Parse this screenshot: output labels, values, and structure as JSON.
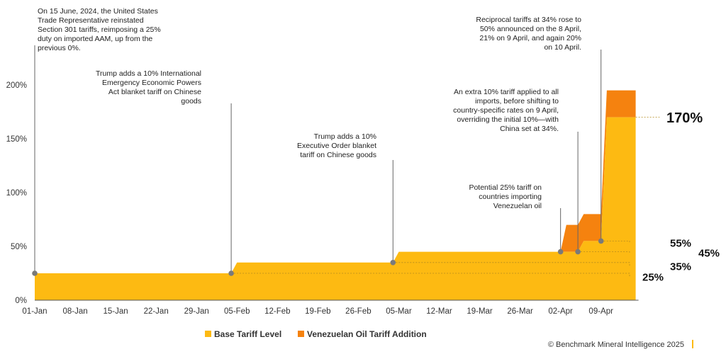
{
  "chart_data": {
    "type": "area",
    "x_ticks": [
      "01-Jan",
      "08-Jan",
      "15-Jan",
      "22-Jan",
      "29-Jan",
      "05-Feb",
      "12-Feb",
      "19-Feb",
      "26-Feb",
      "05-Mar",
      "12-Mar",
      "19-Mar",
      "26-Mar",
      "02-Apr",
      "09-Apr"
    ],
    "y_ticks": [
      "0%",
      "50%",
      "100%",
      "150%",
      "200%"
    ],
    "ylim": [
      0,
      230
    ],
    "xlim": [
      "2025-01-01",
      "2025-04-15"
    ],
    "grid": false,
    "legend_position": "bottom-center",
    "series": [
      {
        "name": "Base Tariff Level",
        "color": "#FDBA12",
        "points": [
          {
            "x": "2025-01-01",
            "y": 25
          },
          {
            "x": "2025-02-04",
            "y": 25
          },
          {
            "x": "2025-02-05",
            "y": 35
          },
          {
            "x": "2025-03-04",
            "y": 35
          },
          {
            "x": "2025-03-05",
            "y": 45
          },
          {
            "x": "2025-04-05",
            "y": 45
          },
          {
            "x": "2025-04-06",
            "y": 55
          },
          {
            "x": "2025-04-09",
            "y": 55
          },
          {
            "x": "2025-04-10",
            "y": 170
          },
          {
            "x": "2025-04-15",
            "y": 170
          }
        ]
      },
      {
        "name": "Venezuelan Oil Tariff Addition",
        "color": "#F5820F",
        "points": [
          {
            "x": "2025-04-02",
            "y": 45
          },
          {
            "x": "2025-04-03",
            "y": 70
          },
          {
            "x": "2025-04-05",
            "y": 70
          },
          {
            "x": "2025-04-06",
            "y": 80
          },
          {
            "x": "2025-04-09",
            "y": 80
          },
          {
            "x": "2025-04-10",
            "y": 195
          },
          {
            "x": "2025-04-15",
            "y": 195
          }
        ]
      }
    ],
    "level_labels": [
      {
        "text": "170%",
        "y": 170
      },
      {
        "text": "55%",
        "y": 55
      },
      {
        "text": "45%",
        "y": 45
      },
      {
        "text": "35%",
        "y": 35
      },
      {
        "text": "25%",
        "y": 25
      }
    ],
    "annotations": [
      {
        "x": "2025-01-01",
        "y": 25,
        "anchor": "start",
        "lines": [
          "On 15 June, 2024, the United States",
          "Trade Representative reinstated",
          "Section 301 tariffs, reimposing a 25%",
          "duty on imported AAM, up from the",
          "previous 0%."
        ]
      },
      {
        "x": "2025-02-04",
        "y": 25,
        "anchor": "end",
        "lines": [
          "Trump adds a 10% International",
          "Emergency Economic Powers",
          "Act blanket tariff on Chinese",
          "goods"
        ]
      },
      {
        "x": "2025-03-04",
        "y": 35,
        "anchor": "end",
        "lines": [
          "Trump adds a 10%",
          "Executive Order blanket",
          "tariff on Chinese goods"
        ]
      },
      {
        "x": "2025-04-02",
        "y": 45,
        "anchor": "end",
        "lines": [
          "Potential 25% tariff on",
          "countries importing",
          "Venezuelan oil"
        ]
      },
      {
        "x": "2025-04-05",
        "y": 45,
        "anchor": "end",
        "lines": [
          "An extra 10% tariff applied to all",
          "imports, before shifting to",
          "country-specific rates on 9 April,",
          "overriding the initial 10%—with",
          "China set at 34%."
        ]
      },
      {
        "x": "2025-04-09",
        "y": 55,
        "anchor": "end",
        "lines": [
          "Reciprocal tariffs at 34% rose to",
          "50% announced on the 8 April,",
          "21% on 9 April, and again 20%",
          "on 10 April."
        ]
      }
    ]
  },
  "footer": {
    "copyright": "© Benchmark Mineral Intelligence 2025"
  }
}
